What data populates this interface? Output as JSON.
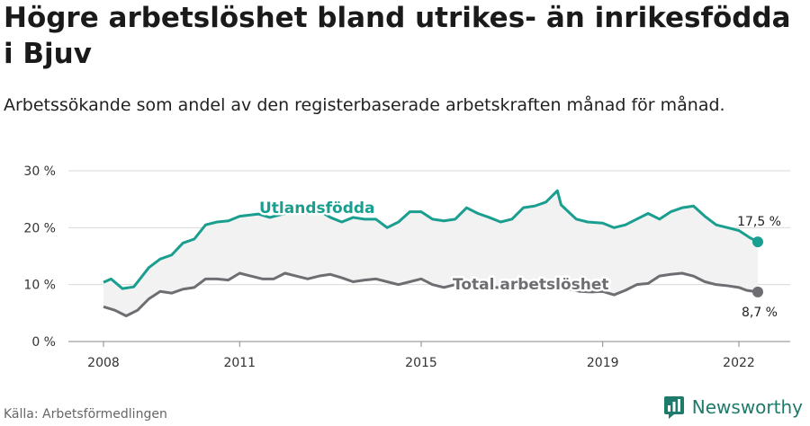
{
  "title": "Högre arbetslöshet bland utrikes- än inrikesfödda i Bjuv",
  "subtitle": "Arbetssökande som andel av den registerbaserade arbetskraften månad för månad.",
  "source": "Källa: Arbetsförmedlingen",
  "brand": {
    "name": "Newsworthy",
    "icon": "newsworthy-bar-chart-icon",
    "color": "#1e7a6a"
  },
  "colors": {
    "utlandsfodda": "#1a9e8f",
    "total": "#6e6e72",
    "band": "#f2f2f2",
    "grid": "#d9d9d9"
  },
  "chart_data": {
    "type": "line",
    "ylim": [
      0,
      30
    ],
    "y_ticks": [
      0,
      10,
      20,
      30
    ],
    "y_tick_labels": [
      "0 %",
      "10 %",
      "20 %",
      "30 %"
    ],
    "x_ticks": [
      "2008",
      "2011",
      "2015",
      "2019",
      "2022"
    ],
    "xlim": [
      "2008-01",
      "2022-06"
    ],
    "grid": true,
    "series": [
      {
        "name": "Utlandsfödda",
        "end_label": "17,5 %",
        "points": [
          [
            "2008-01",
            10.4
          ],
          [
            "2008-03",
            11
          ],
          [
            "2008-06",
            9.3
          ],
          [
            "2008-09",
            9.6
          ],
          [
            "2009-01",
            13
          ],
          [
            "2009-04",
            14.5
          ],
          [
            "2009-07",
            15.2
          ],
          [
            "2009-10",
            17.3
          ],
          [
            "2010-01",
            18
          ],
          [
            "2010-04",
            20.5
          ],
          [
            "2010-07",
            21
          ],
          [
            "2010-10",
            21.2
          ],
          [
            "2011-01",
            22
          ],
          [
            "2011-06",
            22.4
          ],
          [
            "2011-09",
            21.8
          ],
          [
            "2012-01",
            22.5
          ],
          [
            "2012-04",
            23
          ],
          [
            "2012-07",
            22.5
          ],
          [
            "2012-10",
            23
          ],
          [
            "2013-01",
            21.8
          ],
          [
            "2013-04",
            21
          ],
          [
            "2013-07",
            21.8
          ],
          [
            "2013-10",
            21.5
          ],
          [
            "2014-01",
            21.5
          ],
          [
            "2014-04",
            20
          ],
          [
            "2014-07",
            21
          ],
          [
            "2014-10",
            22.8
          ],
          [
            "2015-01",
            22.8
          ],
          [
            "2015-04",
            21.5
          ],
          [
            "2015-07",
            21.2
          ],
          [
            "2015-10",
            21.5
          ],
          [
            "2016-01",
            23.5
          ],
          [
            "2016-04",
            22.5
          ],
          [
            "2016-07",
            21.8
          ],
          [
            "2016-10",
            21
          ],
          [
            "2017-01",
            21.5
          ],
          [
            "2017-04",
            23.5
          ],
          [
            "2017-07",
            23.8
          ],
          [
            "2017-10",
            24.5
          ],
          [
            "2018-01",
            26.5
          ],
          [
            "2018-02",
            24
          ],
          [
            "2018-06",
            21.5
          ],
          [
            "2018-09",
            21
          ],
          [
            "2019-01",
            20.8
          ],
          [
            "2019-04",
            20
          ],
          [
            "2019-07",
            20.5
          ],
          [
            "2019-10",
            21.5
          ],
          [
            "2020-01",
            22.5
          ],
          [
            "2020-04",
            21.5
          ],
          [
            "2020-07",
            22.8
          ],
          [
            "2020-10",
            23.5
          ],
          [
            "2021-01",
            23.8
          ],
          [
            "2021-04",
            22
          ],
          [
            "2021-07",
            20.5
          ],
          [
            "2021-10",
            20
          ],
          [
            "2022-01",
            19.5
          ],
          [
            "2022-04",
            18.2
          ],
          [
            "2022-06",
            17.5
          ]
        ]
      },
      {
        "name": "Total arbetslöshet",
        "end_label": "8,7 %",
        "points": [
          [
            "2008-01",
            6.1
          ],
          [
            "2008-04",
            5.5
          ],
          [
            "2008-07",
            4.5
          ],
          [
            "2008-10",
            5.5
          ],
          [
            "2009-01",
            7.5
          ],
          [
            "2009-04",
            8.8
          ],
          [
            "2009-07",
            8.5
          ],
          [
            "2009-10",
            9.2
          ],
          [
            "2010-01",
            9.5
          ],
          [
            "2010-04",
            11
          ],
          [
            "2010-07",
            11
          ],
          [
            "2010-10",
            10.8
          ],
          [
            "2011-01",
            12
          ],
          [
            "2011-04",
            11.5
          ],
          [
            "2011-07",
            11
          ],
          [
            "2011-10",
            11
          ],
          [
            "2012-01",
            12
          ],
          [
            "2012-04",
            11.5
          ],
          [
            "2012-07",
            11
          ],
          [
            "2012-10",
            11.5
          ],
          [
            "2013-01",
            11.8
          ],
          [
            "2013-04",
            11.2
          ],
          [
            "2013-07",
            10.5
          ],
          [
            "2013-10",
            10.8
          ],
          [
            "2014-01",
            11
          ],
          [
            "2014-04",
            10.5
          ],
          [
            "2014-07",
            10
          ],
          [
            "2014-10",
            10.5
          ],
          [
            "2015-01",
            11
          ],
          [
            "2015-04",
            10
          ],
          [
            "2015-07",
            9.5
          ],
          [
            "2015-10",
            10
          ],
          [
            "2016-01",
            10.5
          ],
          [
            "2016-04",
            10
          ],
          [
            "2016-07",
            9.5
          ],
          [
            "2016-10",
            9.5
          ],
          [
            "2017-01",
            9.8
          ],
          [
            "2017-04",
            10
          ],
          [
            "2017-07",
            9.5
          ],
          [
            "2017-10",
            9.8
          ],
          [
            "2018-01",
            10
          ],
          [
            "2018-04",
            9.2
          ],
          [
            "2018-07",
            8.8
          ],
          [
            "2018-10",
            8.7
          ],
          [
            "2019-01",
            8.8
          ],
          [
            "2019-04",
            8.2
          ],
          [
            "2019-07",
            9
          ],
          [
            "2019-10",
            10
          ],
          [
            "2020-01",
            10.2
          ],
          [
            "2020-04",
            11.5
          ],
          [
            "2020-07",
            11.8
          ],
          [
            "2020-10",
            12
          ],
          [
            "2021-01",
            11.5
          ],
          [
            "2021-04",
            10.5
          ],
          [
            "2021-07",
            10
          ],
          [
            "2021-10",
            9.8
          ],
          [
            "2022-01",
            9.5
          ],
          [
            "2022-03",
            9
          ],
          [
            "2022-06",
            8.7
          ]
        ]
      }
    ]
  }
}
